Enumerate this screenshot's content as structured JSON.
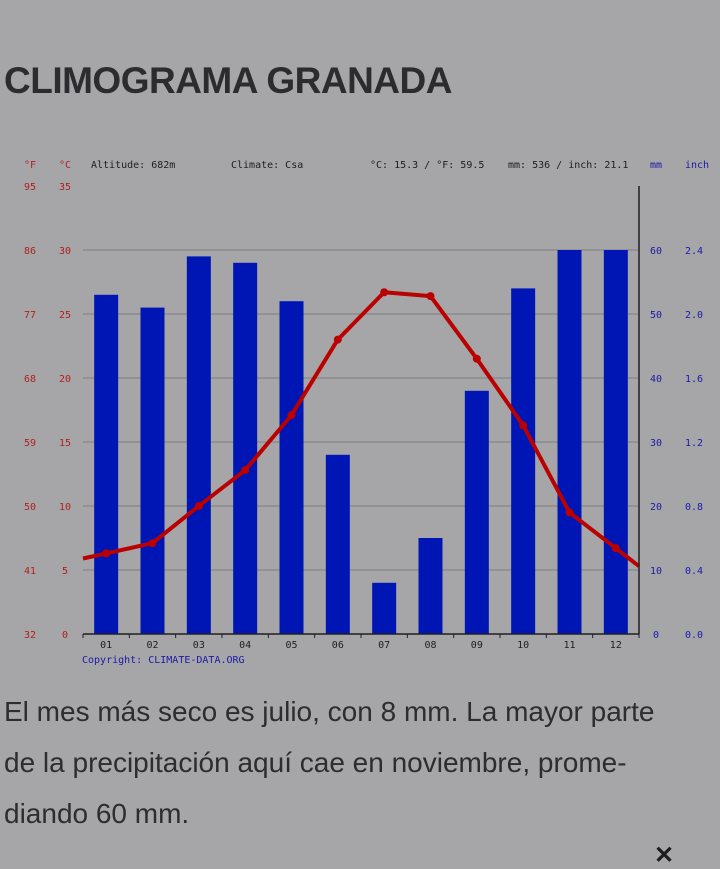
{
  "title": "CLIMOGRAMA GRANADA",
  "description": "El mes más seco es julio, con 8 mm. La mayor parte de la precipitación aquí cae en noviembre, promediando 60 mm.",
  "description_lines": [
    "El mes más seco es julio, con 8 mm. La mayor parte",
    "de la precipitación aquí cae en noviembre, prome-",
    "diando 60 mm."
  ],
  "close_symbol": "✕",
  "chart_data": {
    "type": "bar",
    "categories": [
      "01",
      "02",
      "03",
      "04",
      "05",
      "06",
      "07",
      "08",
      "09",
      "10",
      "11",
      "12"
    ],
    "series": [
      {
        "type": "bar",
        "axis": "precipitation",
        "color": "#0016b4",
        "values": [
          53,
          51,
          59,
          58,
          52,
          28,
          8,
          15,
          38,
          54,
          60,
          60
        ]
      },
      {
        "type": "line",
        "axis": "temperature",
        "color": "#bb0000",
        "values": [
          6.3,
          7.1,
          10.0,
          12.8,
          17.1,
          23.0,
          26.7,
          26.4,
          21.5,
          16.3,
          9.5,
          6.7
        ]
      }
    ],
    "header": {
      "unit_f": "°F",
      "unit_c": "°C",
      "altitude": "Altitude: 682m",
      "climate": "Climate: Csa",
      "temp_avg": "°C: 15.3 / °F: 59.5",
      "precip_total": "mm: 536 / inch: 21.1",
      "unit_mm": "mm",
      "unit_inch": "inch"
    },
    "temp_axis": {
      "min": 0,
      "max": 35,
      "celsius_ticks": [
        "0",
        "5",
        "10",
        "15",
        "20",
        "25",
        "30",
        "35"
      ],
      "fahrenheit_ticks": [
        "32",
        "41",
        "50",
        "59",
        "68",
        "77",
        "86",
        "95"
      ]
    },
    "precip_axis": {
      "min": 0,
      "max": 70,
      "mm_ticks": [
        "0",
        "10",
        "20",
        "30",
        "40",
        "50",
        "60"
      ],
      "inch_ticks": [
        "0.0",
        "0.4",
        "0.8",
        "1.2",
        "1.6",
        "2.0",
        "2.4"
      ]
    },
    "grid": true,
    "copyright": "Copyright: CLIMATE-DATA.ORG",
    "colors": {
      "left_axis_labels": "#b02020",
      "right_axis_labels": "#1a1aa8",
      "gridline": "#7d7d80",
      "axis": "#1f1f24"
    }
  }
}
